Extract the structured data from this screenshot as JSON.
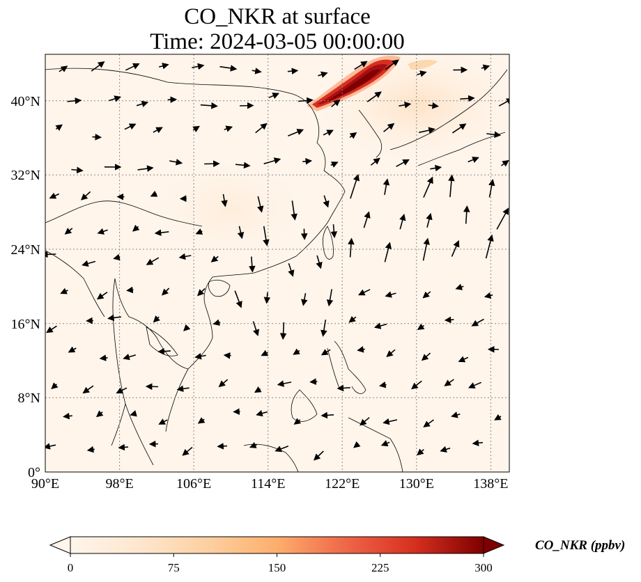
{
  "title": {
    "line1": "CO_NKR at surface",
    "line2": "Time: 2024-03-05 00:00:00"
  },
  "map": {
    "lon_range": [
      90,
      140
    ],
    "lat_range": [
      0,
      45
    ],
    "lon_ticks": [
      "90°E",
      "98°E",
      "106°E",
      "114°E",
      "122°E",
      "130°E",
      "138°E"
    ],
    "lat_ticks": [
      "0°",
      "8°N",
      "16°N",
      "24°N",
      "32°N",
      "40°N"
    ],
    "gridlines": true,
    "background_color": "#fff5eb",
    "plume_color": "#7f0000"
  },
  "colorbar": {
    "label": "CO_NKR (ppbv)",
    "ticks": [
      "0",
      "75",
      "150",
      "225",
      "300"
    ],
    "min": 0,
    "max": 300,
    "extend": "both",
    "colormap": [
      "#fff5eb",
      "#fdd49e",
      "#fdae6b",
      "#f16913",
      "#d7301f",
      "#a50f15",
      "#7f0000"
    ]
  }
}
